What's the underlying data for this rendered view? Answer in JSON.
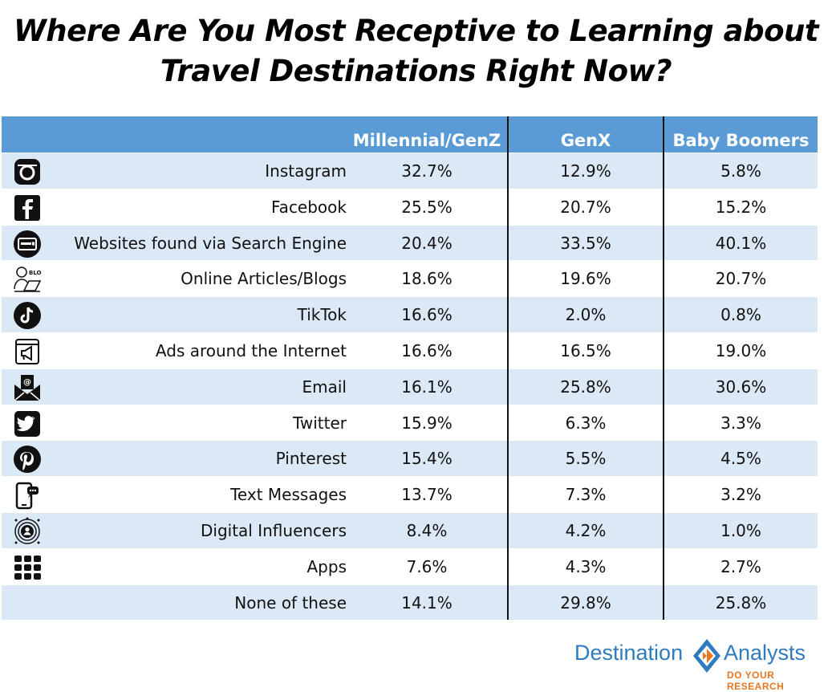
{
  "title_line1": "Where Are You Most Receptive to Learning about",
  "title_line2": "Travel Destinations Right Now?",
  "chart_data": {
    "type": "table",
    "title": "Where Are You Most Receptive to Learning about Travel Destinations Right Now?",
    "columns": [
      "Millennial/GenZ",
      "GenX",
      "Baby Boomers"
    ],
    "rows": [
      {
        "label": "Instagram",
        "icon": "instagram-icon",
        "values": [
          "32.7%",
          "12.9%",
          "5.8%"
        ]
      },
      {
        "label": "Facebook",
        "icon": "facebook-icon",
        "values": [
          "25.5%",
          "20.7%",
          "15.2%"
        ]
      },
      {
        "label": "Websites found via Search Engine",
        "icon": "browser-search-icon",
        "values": [
          "20.4%",
          "33.5%",
          "40.1%"
        ]
      },
      {
        "label": "Online Articles/Blogs",
        "icon": "blog-icon",
        "values": [
          "18.6%",
          "19.6%",
          "20.7%"
        ]
      },
      {
        "label": "TikTok",
        "icon": "tiktok-icon",
        "values": [
          "16.6%",
          "2.0%",
          "0.8%"
        ]
      },
      {
        "label": "Ads around the Internet",
        "icon": "web-ad-megaphone-icon",
        "values": [
          "16.6%",
          "16.5%",
          "19.0%"
        ]
      },
      {
        "label": "Email",
        "icon": "email-envelope-icon",
        "values": [
          "16.1%",
          "25.8%",
          "30.6%"
        ]
      },
      {
        "label": "Twitter",
        "icon": "twitter-icon",
        "values": [
          "15.9%",
          "6.3%",
          "3.3%"
        ]
      },
      {
        "label": "Pinterest",
        "icon": "pinterest-icon",
        "values": [
          "15.4%",
          "5.5%",
          "4.5%"
        ]
      },
      {
        "label": "Text Messages",
        "icon": "phone-message-icon",
        "values": [
          "13.7%",
          "7.3%",
          "3.2%"
        ]
      },
      {
        "label": "Digital Influencers",
        "icon": "influencer-icon",
        "values": [
          "8.4%",
          "4.2%",
          "1.0%"
        ]
      },
      {
        "label": "Apps",
        "icon": "apps-grid-icon",
        "values": [
          "7.6%",
          "4.3%",
          "2.7%"
        ]
      },
      {
        "label": "None of these",
        "icon": "",
        "values": [
          "14.1%",
          "29.8%",
          "25.8%"
        ]
      }
    ]
  },
  "colors": {
    "header_bg": "#5b9bd5",
    "row_alt_bg": "#dbe8f5",
    "logo_blue": "#2e7bbf",
    "logo_orange": "#e87722"
  },
  "logo": {
    "word1": "Destination",
    "word2": "Analysts",
    "tagline": "DO YOUR RESEARCH"
  }
}
